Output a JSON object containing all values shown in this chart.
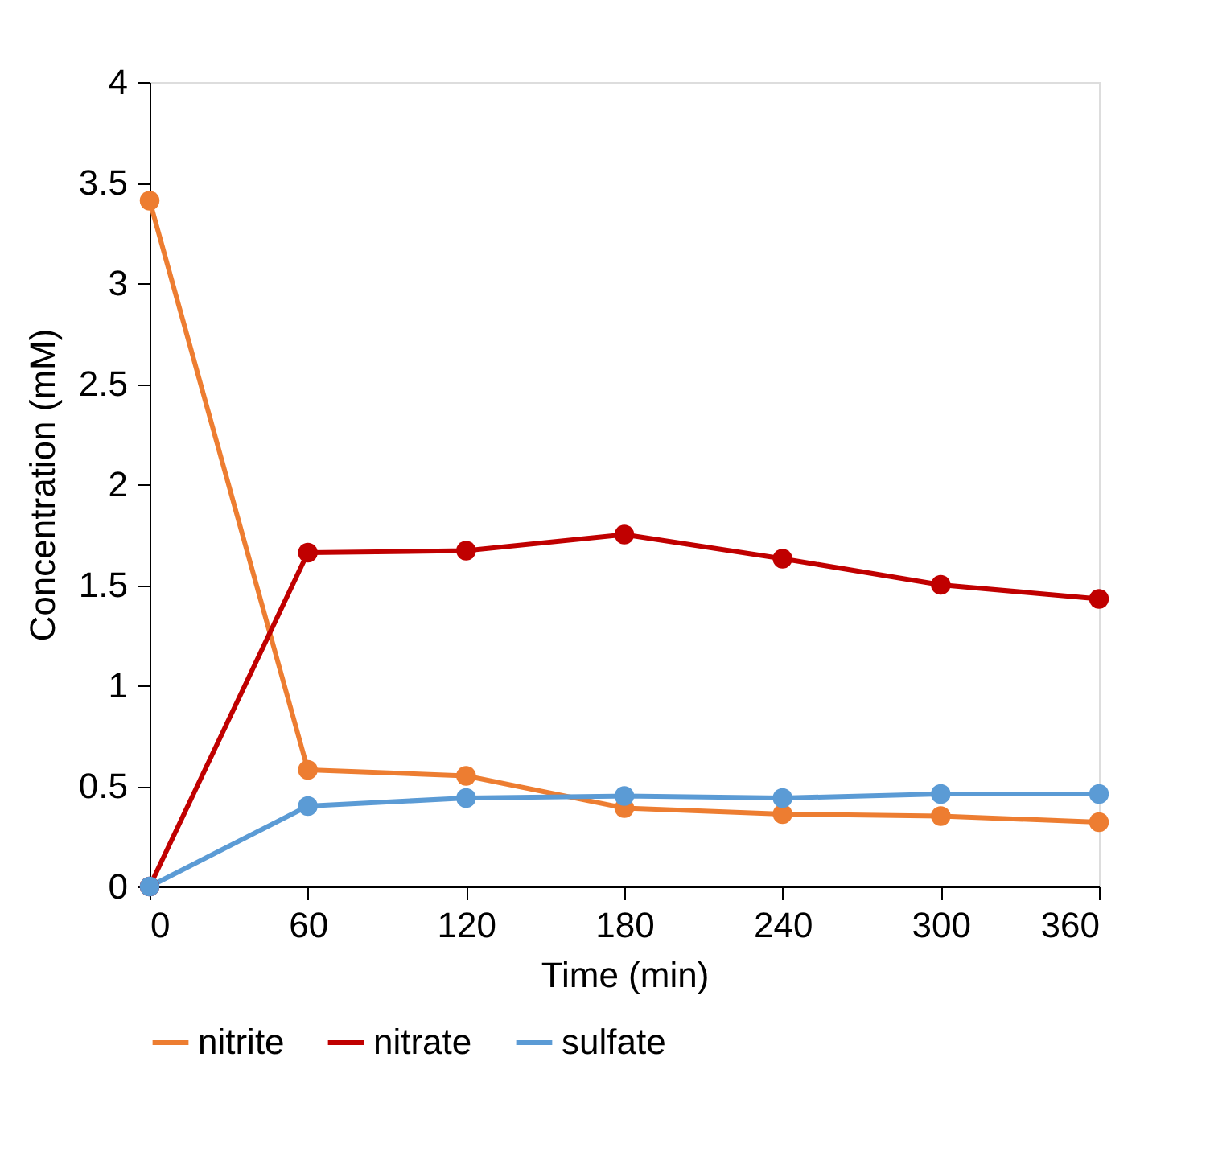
{
  "chart_data": {
    "type": "line",
    "xlabel": "Time (min)",
    "ylabel": "Concentration (mM)",
    "x": [
      0,
      60,
      120,
      180,
      240,
      300,
      360
    ],
    "series": [
      {
        "name": "nitrite",
        "color": "#ed7d31",
        "values": [
          3.41,
          0.58,
          0.55,
          0.39,
          0.36,
          0.35,
          0.32
        ]
      },
      {
        "name": "nitrate",
        "color": "#c00000",
        "values": [
          0,
          1.66,
          1.67,
          1.75,
          1.63,
          1.5,
          1.43
        ]
      },
      {
        "name": "sulfate",
        "color": "#5b9bd5",
        "values": [
          0,
          0.4,
          0.44,
          0.45,
          0.44,
          0.46,
          0.46
        ]
      }
    ],
    "xlim": [
      0,
      360
    ],
    "xticks": [
      0,
      60,
      120,
      180,
      240,
      300,
      360
    ],
    "ylim": [
      0,
      4
    ],
    "yticks": [
      0,
      0.5,
      1,
      1.5,
      2,
      2.5,
      3,
      3.5,
      4
    ],
    "grid": false,
    "legend": "bottom",
    "marker": "circle",
    "line_style": "solid"
  }
}
